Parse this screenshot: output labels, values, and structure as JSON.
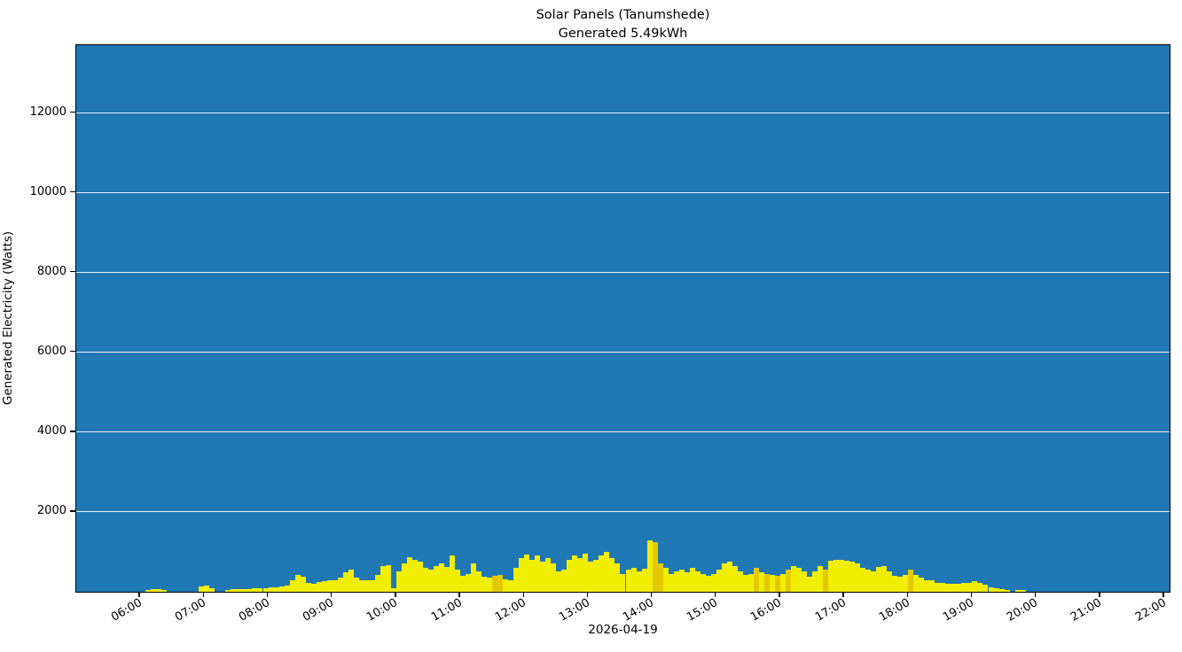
{
  "chart_data": {
    "type": "bar",
    "title_line1": "Solar Panels (Tanumshede)",
    "title_line2": "Generated 5.49kWh",
    "xlabel": "2026-04-19",
    "ylabel": "Generated Electricity (Watts)",
    "legend": false,
    "grid": true,
    "x_axis": {
      "range_hours": [
        5.0,
        22.0833
      ],
      "tick_labels": [
        "06:00",
        "07:00",
        "08:00",
        "09:00",
        "10:00",
        "11:00",
        "12:00",
        "13:00",
        "14:00",
        "15:00",
        "16:00",
        "17:00",
        "18:00",
        "19:00",
        "20:00",
        "21:00",
        "22:00"
      ]
    },
    "y_axis": {
      "range": [
        0,
        13700
      ],
      "ticks": [
        2000,
        4000,
        6000,
        8000,
        10000,
        12000
      ]
    },
    "bar_interval_minutes": 5,
    "colors": {
      "plot_background": "#1f77b4",
      "bar": "#f2ee00",
      "bar_dark": "#e3c900",
      "gridline": "#ffffff",
      "spine": "#000000"
    },
    "dark_bar_times": [
      "11:30",
      "11:35",
      "14:00",
      "14:05",
      "15:35",
      "15:45",
      "15:55",
      "16:05",
      "16:40",
      "18:00"
    ],
    "points": [
      [
        "06:05",
        50
      ],
      [
        "06:10",
        60
      ],
      [
        "06:15",
        60
      ],
      [
        "06:20",
        45
      ],
      [
        "06:55",
        130
      ],
      [
        "07:00",
        150
      ],
      [
        "07:05",
        95
      ],
      [
        "07:20",
        50
      ],
      [
        "07:25",
        60
      ],
      [
        "07:30",
        60
      ],
      [
        "07:35",
        70
      ],
      [
        "07:40",
        75
      ],
      [
        "07:45",
        85
      ],
      [
        "07:50",
        90
      ],
      [
        "07:55",
        100
      ],
      [
        "08:00",
        110
      ],
      [
        "08:05",
        120
      ],
      [
        "08:10",
        130
      ],
      [
        "08:15",
        150
      ],
      [
        "08:20",
        300
      ],
      [
        "08:25",
        420
      ],
      [
        "08:30",
        380
      ],
      [
        "08:35",
        230
      ],
      [
        "08:40",
        200
      ],
      [
        "08:45",
        240
      ],
      [
        "08:50",
        260
      ],
      [
        "08:55",
        280
      ],
      [
        "09:00",
        300
      ],
      [
        "09:05",
        350
      ],
      [
        "09:10",
        480
      ],
      [
        "09:15",
        560
      ],
      [
        "09:20",
        350
      ],
      [
        "09:25",
        300
      ],
      [
        "09:30",
        280
      ],
      [
        "09:35",
        300
      ],
      [
        "09:40",
        430
      ],
      [
        "09:45",
        650
      ],
      [
        "09:50",
        670
      ],
      [
        "09:55",
        90
      ],
      [
        "10:00",
        500
      ],
      [
        "10:05",
        700
      ],
      [
        "10:10",
        870
      ],
      [
        "10:15",
        800
      ],
      [
        "10:20",
        750
      ],
      [
        "10:25",
        600
      ],
      [
        "10:30",
        550
      ],
      [
        "10:35",
        650
      ],
      [
        "10:40",
        700
      ],
      [
        "10:45",
        620
      ],
      [
        "10:50",
        900
      ],
      [
        "10:55",
        550
      ],
      [
        "11:00",
        400
      ],
      [
        "11:05",
        450
      ],
      [
        "11:10",
        700
      ],
      [
        "11:15",
        500
      ],
      [
        "11:20",
        380
      ],
      [
        "11:25",
        360
      ],
      [
        "11:30",
        400
      ],
      [
        "11:35",
        420
      ],
      [
        "11:40",
        320
      ],
      [
        "11:45",
        300
      ],
      [
        "11:50",
        600
      ],
      [
        "11:55",
        850
      ],
      [
        "12:00",
        940
      ],
      [
        "12:05",
        800
      ],
      [
        "12:10",
        900
      ],
      [
        "12:15",
        750
      ],
      [
        "12:20",
        850
      ],
      [
        "12:25",
        700
      ],
      [
        "12:30",
        500
      ],
      [
        "12:35",
        550
      ],
      [
        "12:40",
        800
      ],
      [
        "12:45",
        900
      ],
      [
        "12:50",
        850
      ],
      [
        "12:55",
        950
      ],
      [
        "13:00",
        750
      ],
      [
        "13:05",
        800
      ],
      [
        "13:10",
        900
      ],
      [
        "13:15",
        1000
      ],
      [
        "13:20",
        850
      ],
      [
        "13:25",
        700
      ],
      [
        "13:30",
        450
      ],
      [
        "13:35",
        550
      ],
      [
        "13:40",
        600
      ],
      [
        "13:45",
        500
      ],
      [
        "13:50",
        580
      ],
      [
        "13:55",
        1280
      ],
      [
        "14:00",
        1240
      ],
      [
        "14:05",
        700
      ],
      [
        "14:10",
        600
      ],
      [
        "14:15",
        450
      ],
      [
        "14:20",
        500
      ],
      [
        "14:25",
        550
      ],
      [
        "14:30",
        480
      ],
      [
        "14:35",
        600
      ],
      [
        "14:40",
        520
      ],
      [
        "14:45",
        450
      ],
      [
        "14:50",
        400
      ],
      [
        "14:55",
        450
      ],
      [
        "15:00",
        550
      ],
      [
        "15:05",
        700
      ],
      [
        "15:10",
        750
      ],
      [
        "15:15",
        650
      ],
      [
        "15:20",
        500
      ],
      [
        "15:25",
        420
      ],
      [
        "15:30",
        450
      ],
      [
        "15:35",
        600
      ],
      [
        "15:40",
        480
      ],
      [
        "15:45",
        450
      ],
      [
        "15:50",
        430
      ],
      [
        "15:55",
        400
      ],
      [
        "16:00",
        450
      ],
      [
        "16:05",
        550
      ],
      [
        "16:10",
        650
      ],
      [
        "16:15",
        600
      ],
      [
        "16:20",
        500
      ],
      [
        "16:25",
        380
      ],
      [
        "16:30",
        500
      ],
      [
        "16:35",
        650
      ],
      [
        "16:40",
        550
      ],
      [
        "16:45",
        780
      ],
      [
        "16:50",
        800
      ],
      [
        "16:55",
        800
      ],
      [
        "17:00",
        780
      ],
      [
        "17:05",
        750
      ],
      [
        "17:10",
        700
      ],
      [
        "17:15",
        600
      ],
      [
        "17:20",
        550
      ],
      [
        "17:25",
        500
      ],
      [
        "17:30",
        620
      ],
      [
        "17:35",
        650
      ],
      [
        "17:40",
        500
      ],
      [
        "17:45",
        400
      ],
      [
        "17:50",
        380
      ],
      [
        "17:55",
        420
      ],
      [
        "18:00",
        560
      ],
      [
        "18:05",
        420
      ],
      [
        "18:10",
        350
      ],
      [
        "18:15",
        300
      ],
      [
        "18:20",
        280
      ],
      [
        "18:25",
        230
      ],
      [
        "18:30",
        220
      ],
      [
        "18:35",
        210
      ],
      [
        "18:40",
        200
      ],
      [
        "18:45",
        210
      ],
      [
        "18:50",
        220
      ],
      [
        "18:55",
        230
      ],
      [
        "19:00",
        260
      ],
      [
        "19:05",
        220
      ],
      [
        "19:10",
        180
      ],
      [
        "19:15",
        120
      ],
      [
        "19:20",
        80
      ],
      [
        "19:25",
        60
      ],
      [
        "19:30",
        50
      ],
      [
        "19:40",
        50
      ],
      [
        "19:45",
        40
      ]
    ]
  }
}
